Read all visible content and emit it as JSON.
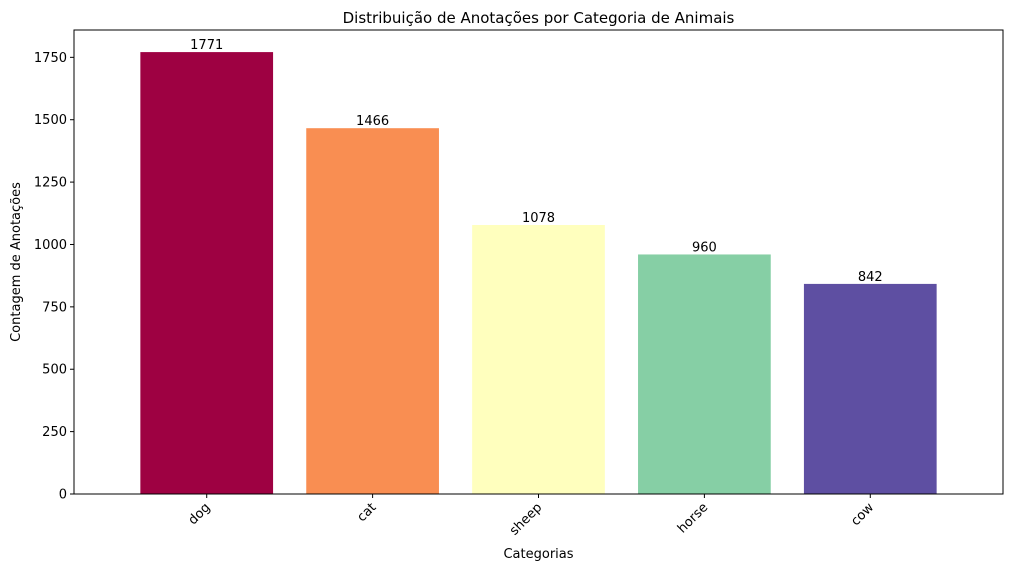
{
  "chart_data": {
    "type": "bar",
    "title": "Distribuição de Anotações por Categoria de Animais",
    "xlabel": "Categorias",
    "ylabel": "Contagem de Anotações",
    "categories": [
      "dog",
      "cat",
      "sheep",
      "horse",
      "cow"
    ],
    "values": [
      1771,
      1466,
      1078,
      960,
      842
    ],
    "data_labels": [
      "1771",
      "1466",
      "1078",
      "960",
      "842"
    ],
    "colors": [
      "#9e0142",
      "#f98e52",
      "#ffffbe",
      "#86cfa5",
      "#5e4fa2"
    ],
    "ylim": [
      0,
      1859.55
    ],
    "yticks": [
      0,
      250,
      500,
      750,
      1000,
      1250,
      1500,
      1750
    ],
    "ytick_labels": [
      "0",
      "250",
      "500",
      "750",
      "1000",
      "1250",
      "1500",
      "1750"
    ],
    "grid": false,
    "legend": "none",
    "xtick_rotation": "45"
  }
}
